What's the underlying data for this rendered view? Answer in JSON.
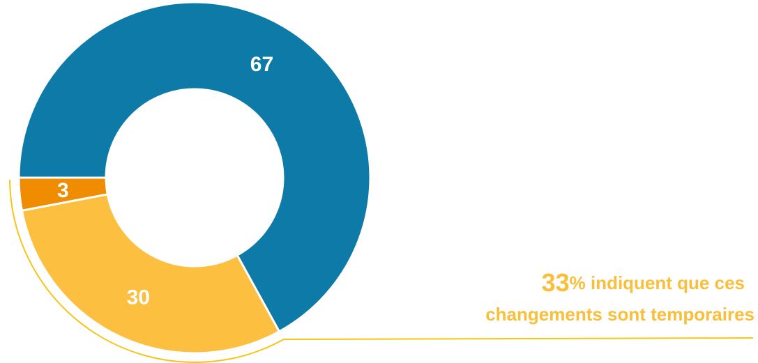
{
  "chart_data": {
    "type": "donut",
    "categories": [
      "blue",
      "yellow",
      "orange"
    ],
    "values": [
      67,
      30,
      3
    ],
    "colors": [
      "#0e7aa8",
      "#fdbf3f",
      "#ef8c00"
    ],
    "annotation": {
      "number": 33,
      "line1": "% indiquent que ces",
      "line2": "changements sont temporaires"
    }
  }
}
